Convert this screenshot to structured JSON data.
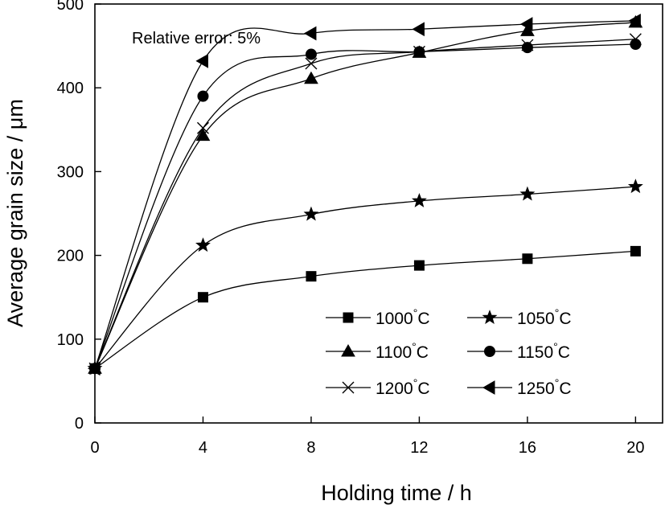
{
  "chart_data": {
    "type": "line",
    "title": "",
    "xlabel": "Holding time / h",
    "ylabel": "Average grain size / μm",
    "xlim": [
      0,
      21
    ],
    "ylim": [
      0,
      500
    ],
    "xticks": [
      0,
      4,
      8,
      12,
      16,
      20
    ],
    "yticks": [
      0,
      100,
      200,
      300,
      400,
      500
    ],
    "grid": false,
    "legend_position": "bottom-right",
    "annotation": "Relative error: 5%",
    "x": [
      0,
      4,
      8,
      12,
      16,
      20
    ],
    "series": [
      {
        "name": "1000",
        "unit": "°C",
        "marker": "square",
        "values": [
          65,
          150,
          175,
          188,
          196,
          205
        ]
      },
      {
        "name": "1050",
        "unit": "°C",
        "marker": "star",
        "values": [
          65,
          212,
          249,
          265,
          273,
          282
        ]
      },
      {
        "name": "1100",
        "unit": "°C",
        "marker": "triangle-up",
        "values": [
          65,
          343,
          411,
          442,
          468,
          478
        ]
      },
      {
        "name": "1150",
        "unit": "°C",
        "marker": "circle",
        "values": [
          65,
          390,
          440,
          443,
          448,
          452
        ]
      },
      {
        "name": "1200",
        "unit": "°C",
        "marker": "x",
        "values": [
          65,
          352,
          429,
          443,
          451,
          458
        ]
      },
      {
        "name": "1250",
        "unit": "°C",
        "marker": "triangle-left",
        "values": [
          65,
          432,
          465,
          470,
          476,
          480
        ]
      }
    ]
  }
}
